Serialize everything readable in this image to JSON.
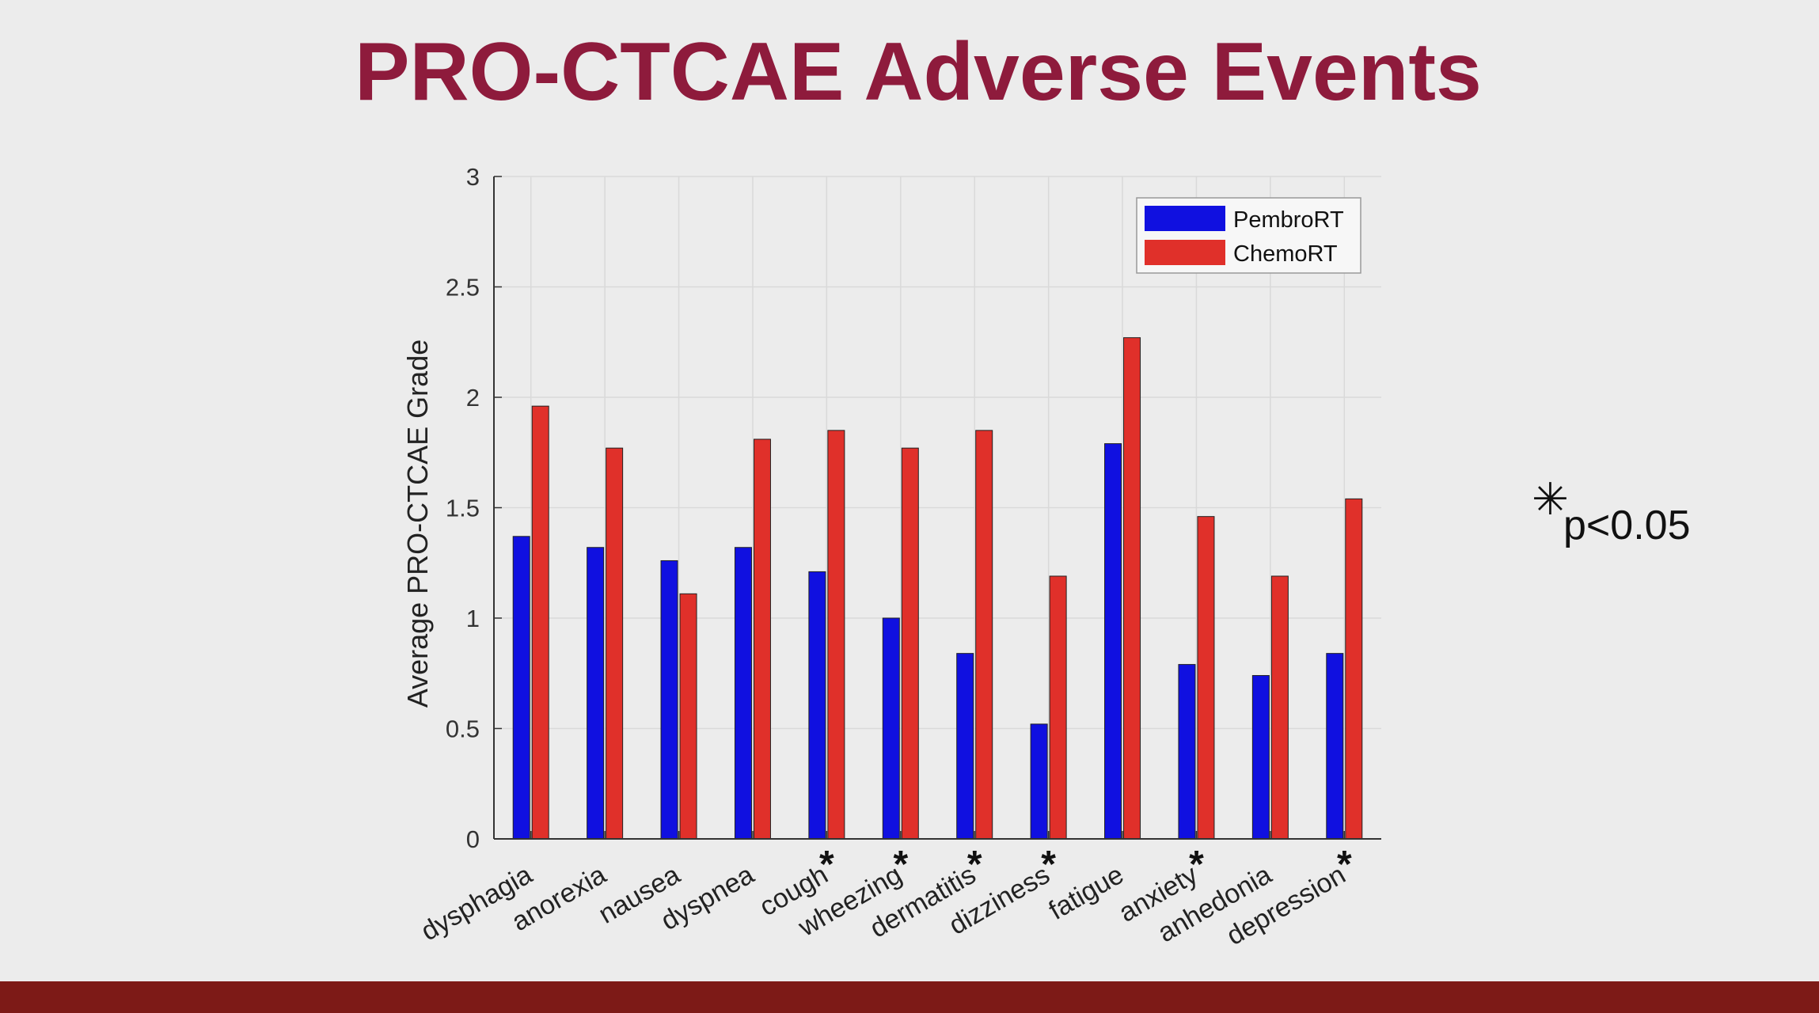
{
  "slide": {
    "title": "PRO-CTCAE Adverse Events",
    "significance_note": {
      "symbol": "✳",
      "text": "p<0.05"
    },
    "colors": {
      "title": "#8e1b3c",
      "footer": "#7d1a17",
      "background": "#ececec"
    }
  },
  "chart_data": {
    "type": "bar",
    "title": "",
    "xlabel": "",
    "ylabel": "Average PRO-CTCAE Grade",
    "ylim": [
      0,
      3
    ],
    "yticks": [
      "0",
      "0.5",
      "1",
      "1.5",
      "2",
      "2.5",
      "3"
    ],
    "grid": true,
    "legend_position": "top-right",
    "categories": [
      "dysphagia",
      "anorexia",
      "nausea",
      "dyspnea",
      "cough",
      "wheezing",
      "dermatitis",
      "dizziness",
      "fatigue",
      "anxiety",
      "anhedonia",
      "depression"
    ],
    "significant": [
      false,
      false,
      false,
      false,
      true,
      true,
      true,
      true,
      false,
      true,
      false,
      true
    ],
    "significance_marker": "*",
    "series": [
      {
        "name": "PembroRT",
        "color": "#1010e0",
        "values": [
          1.37,
          1.32,
          1.26,
          1.32,
          1.21,
          1.0,
          0.84,
          0.52,
          1.79,
          0.79,
          0.74,
          0.84
        ]
      },
      {
        "name": "ChemoRT",
        "color": "#e0302a",
        "values": [
          1.96,
          1.77,
          1.11,
          1.81,
          1.85,
          1.77,
          1.85,
          1.19,
          2.27,
          1.46,
          1.19,
          1.54
        ]
      }
    ]
  }
}
